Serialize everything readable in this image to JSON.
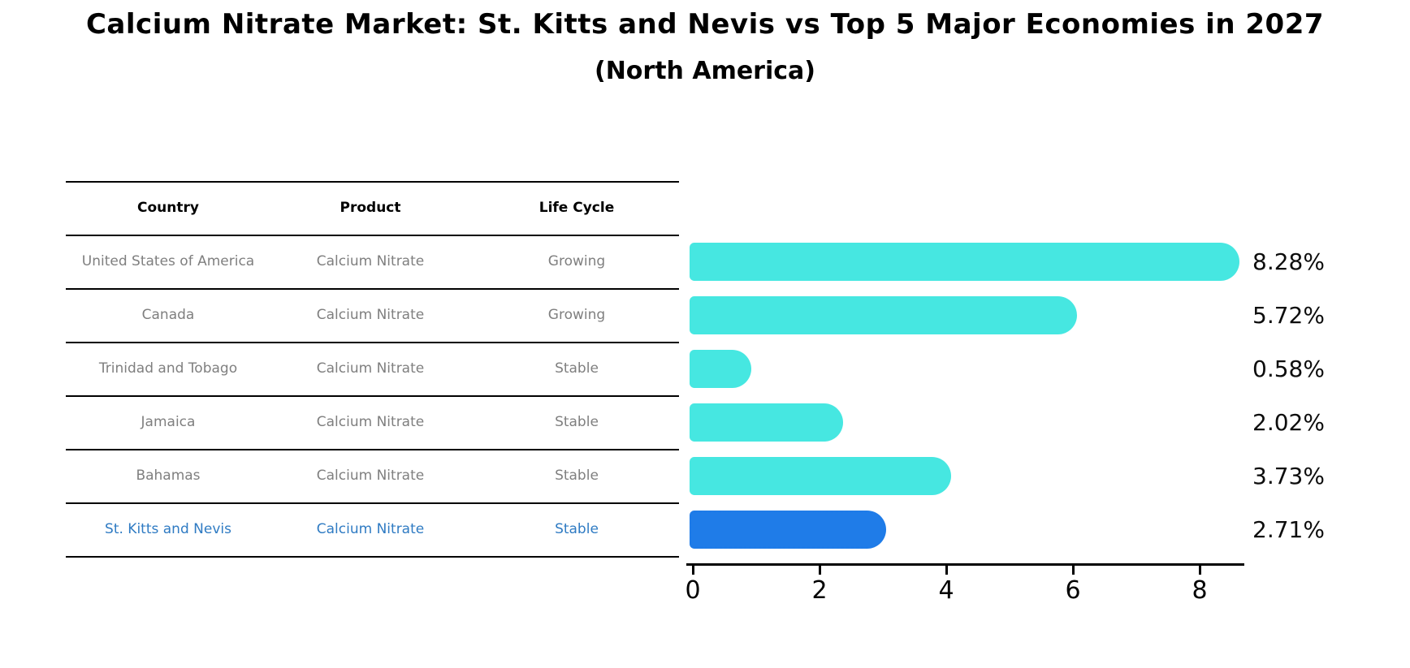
{
  "title": "Calcium Nitrate Market: St. Kitts and Nevis vs Top 5 Major Economies in 2027",
  "subtitle": "(North America)",
  "table": {
    "headers": [
      "Country",
      "Product",
      "Life Cycle"
    ],
    "rows": [
      {
        "country": "United States of America",
        "product": "Calcium Nitrate",
        "life_cycle": "Growing",
        "highlighted": false
      },
      {
        "country": "Canada",
        "product": "Calcium Nitrate",
        "life_cycle": "Growing",
        "highlighted": false
      },
      {
        "country": "Trinidad and Tobago",
        "product": "Calcium Nitrate",
        "life_cycle": "Stable",
        "highlighted": false
      },
      {
        "country": "Jamaica",
        "product": "Calcium Nitrate",
        "life_cycle": "Stable",
        "highlighted": false
      },
      {
        "country": "Bahamas",
        "product": "Calcium Nitrate",
        "life_cycle": "Stable",
        "highlighted": false
      },
      {
        "country": "St. Kitts and Nevis",
        "product": "Calcium Nitrate",
        "life_cycle": "Stable",
        "highlighted": true
      }
    ]
  },
  "chart_data": {
    "type": "bar",
    "orientation": "horizontal",
    "title": "Calcium Nitrate Market: St. Kitts and Nevis vs Top 5 Major Economies in 2027 (North America)",
    "categories": [
      "United States of America",
      "Canada",
      "Trinidad and Tobago",
      "Jamaica",
      "Bahamas",
      "St. Kitts and Nevis"
    ],
    "values": [
      8.28,
      5.72,
      0.58,
      2.02,
      3.73,
      2.71
    ],
    "value_labels": [
      "8.28%",
      "5.72%",
      "0.58%",
      "2.02%",
      "3.73%",
      "2.71%"
    ],
    "x_ticks": [
      0,
      2,
      4,
      6,
      8
    ],
    "xlim": [
      0,
      8.8
    ],
    "grid": false,
    "legend": false,
    "bar_color": "#46e7e1",
    "highlight_bar_color": "#1f7ce8",
    "highlight_index": 5,
    "highlight_text_color": "#2f7bc3",
    "cell_text_color": "#7f7f7f"
  }
}
